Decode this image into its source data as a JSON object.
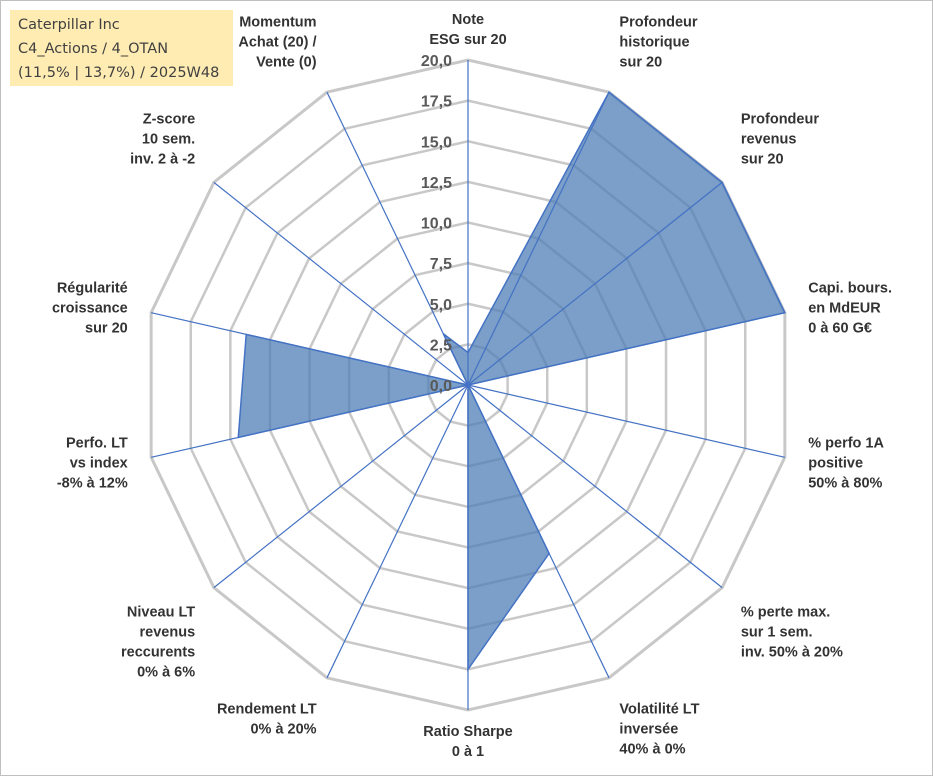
{
  "info": {
    "line1": "Caterpillar Inc",
    "line2": "C4_Actions / 4_OTAN",
    "line3": "(11,5% | 13,7%) / 2025W48"
  },
  "colors": {
    "fill": "#4f7fb5",
    "stroke": "#4472c4",
    "grid": "#c8c8c8",
    "spoke": "#4472c4"
  },
  "chart_data": {
    "type": "radar",
    "title": "",
    "rmin": 0,
    "rmax": 20,
    "tick_labels": [
      "0,0",
      "2,5",
      "5,0",
      "7,5",
      "10,0",
      "12,5",
      "15,0",
      "17,5",
      "20,0"
    ],
    "axes": [
      {
        "lines": [
          "Note",
          "ESG sur 20"
        ],
        "value": 2.0
      },
      {
        "lines": [
          "Profondeur",
          "historique",
          "sur 20"
        ],
        "value": 20.0
      },
      {
        "lines": [
          "Profondeur",
          "revenus",
          "sur 20"
        ],
        "value": 20.0
      },
      {
        "lines": [
          "Capi. bours.",
          "en MdEUR",
          "0 à 60 G€"
        ],
        "value": 20.0
      },
      {
        "lines": [
          "% perfo 1A",
          "positive",
          "50% à 80%"
        ],
        "value": 0.0
      },
      {
        "lines": [
          "% perte max.",
          "sur 1 sem.",
          "inv. 50% à 20%"
        ],
        "value": 0.0
      },
      {
        "lines": [
          "Volatilité LT",
          "inversée",
          "40% à 0%"
        ],
        "value": 11.5
      },
      {
        "lines": [
          "Ratio Sharpe",
          "0 à 1"
        ],
        "value": 17.5
      },
      {
        "lines": [
          "Rendement LT",
          "0% à 20%"
        ],
        "value": 0.0
      },
      {
        "lines": [
          "Niveau LT",
          "revenus",
          "reccurents",
          "0% à 6%"
        ],
        "value": 0.0
      },
      {
        "lines": [
          "Perfo. LT",
          "vs index",
          "-8% à 12%"
        ],
        "value": 14.5
      },
      {
        "lines": [
          "Régularité",
          "croissance",
          "sur 20"
        ],
        "value": 14.0
      },
      {
        "lines": [
          "Z-score",
          "10 sem.",
          "inv. 2 à -2"
        ],
        "value": 0.0
      },
      {
        "lines": [
          "Momentum",
          "Achat (20) /",
          "Vente (0)"
        ],
        "value": 3.5
      }
    ]
  }
}
